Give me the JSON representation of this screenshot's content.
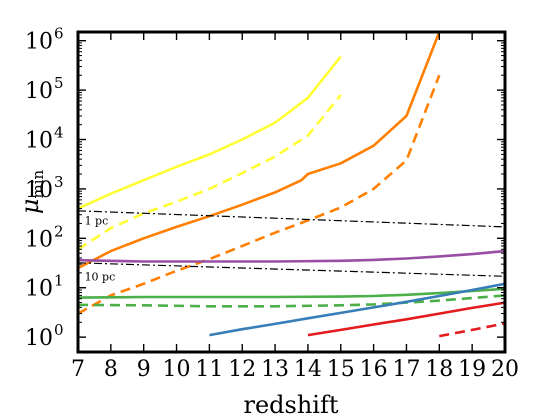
{
  "chart_data": {
    "type": "line",
    "xlabel": "redshift",
    "ylabel_main": "μ",
    "ylabel_sub": "min",
    "xlim": [
      7,
      20
    ],
    "ylim": [
      0.5,
      1500000
    ],
    "yscale": "log",
    "x_ticks": [
      7,
      8,
      9,
      10,
      11,
      12,
      13,
      14,
      15,
      16,
      17,
      18,
      19,
      20
    ],
    "y_ticks": [
      {
        "value": 1,
        "base": "10",
        "exp": "0"
      },
      {
        "value": 10,
        "base": "10",
        "exp": "1"
      },
      {
        "value": 100,
        "base": "10",
        "exp": "2"
      },
      {
        "value": 1000,
        "base": "10",
        "exp": "3"
      },
      {
        "value": 10000,
        "base": "10",
        "exp": "4"
      },
      {
        "value": 100000,
        "base": "10",
        "exp": "5"
      },
      {
        "value": 1000000,
        "base": "10",
        "exp": "6"
      }
    ],
    "grid": false,
    "series": [
      {
        "color": "#ffff33",
        "style": "solid",
        "x": [
          7,
          8,
          9,
          10,
          11,
          12,
          13,
          14,
          15
        ],
        "y": [
          400,
          800,
          1500,
          2800,
          5000,
          10000,
          22000,
          70000,
          480000
        ]
      },
      {
        "color": "#ffff33",
        "style": "dashed",
        "x": [
          7,
          8,
          9,
          10,
          11,
          12,
          13,
          14,
          15
        ],
        "y": [
          60,
          160,
          320,
          550,
          1000,
          2100,
          4500,
          12000,
          80000
        ]
      },
      {
        "color": "#ff7f00",
        "style": "solid",
        "x": [
          7,
          8,
          9,
          10,
          11,
          12,
          13,
          13.8,
          14,
          15,
          16,
          17,
          18
        ],
        "y": [
          25,
          55,
          100,
          170,
          280,
          480,
          850,
          1500,
          2000,
          3300,
          7500,
          30000,
          1500000
        ]
      },
      {
        "color": "#ff7f00",
        "style": "dashed",
        "x": [
          7,
          8,
          9,
          10,
          11,
          12,
          13,
          14,
          15,
          16,
          17,
          18
        ],
        "y": [
          3,
          7,
          12,
          22,
          38,
          70,
          130,
          230,
          420,
          1000,
          3800,
          200000
        ]
      },
      {
        "color": "#984ea3",
        "style": "solid",
        "x": [
          7,
          9,
          11,
          13,
          15,
          16,
          17,
          18,
          19,
          20
        ],
        "y": [
          36,
          34,
          34,
          34,
          35,
          36.5,
          39,
          43,
          48,
          55
        ]
      },
      {
        "color": "#4daf4a",
        "style": "solid",
        "x": [
          7,
          9,
          11,
          13,
          15,
          16,
          17,
          18,
          19,
          20
        ],
        "y": [
          6.3,
          6.5,
          6.5,
          6.5,
          6.6,
          6.8,
          7.2,
          7.8,
          8.6,
          9.5
        ]
      },
      {
        "color": "#4daf4a",
        "style": "dashed",
        "x": [
          7,
          9,
          11,
          13,
          15,
          16,
          17,
          18,
          19,
          20
        ],
        "y": [
          4.5,
          4.4,
          4.2,
          4.2,
          4.4,
          4.6,
          5.0,
          5.5,
          6.2,
          7.0
        ]
      },
      {
        "color": "#377eb8",
        "style": "solid",
        "x": [
          11,
          12,
          13,
          14,
          15,
          16,
          17,
          18,
          19,
          20
        ],
        "y": [
          1.1,
          1.45,
          1.85,
          2.4,
          3.1,
          4.0,
          5.2,
          6.8,
          9.0,
          12.0
        ]
      },
      {
        "color": "#e41a1c",
        "style": "solid",
        "x": [
          14,
          15,
          16,
          17,
          18,
          19,
          20
        ],
        "y": [
          1.1,
          1.4,
          1.8,
          2.3,
          3.0,
          3.9,
          5.0
        ]
      },
      {
        "color": "#e41a1c",
        "style": "dashed",
        "x": [
          18,
          19,
          20
        ],
        "y": [
          1.05,
          1.4,
          1.9
        ]
      },
      {
        "color": "#000000",
        "style": "dashdot",
        "label": "1 pc",
        "x": [
          7,
          20
        ],
        "y": [
          360,
          170
        ]
      },
      {
        "color": "#000000",
        "style": "dashdot",
        "label": "10 pc",
        "x": [
          7,
          20
        ],
        "y": [
          32,
          17
        ]
      }
    ],
    "annotations": [
      {
        "text": "1 pc",
        "x": 7.2,
        "y": 190
      },
      {
        "text": "10 pc",
        "x": 7.2,
        "y": 14
      }
    ]
  }
}
